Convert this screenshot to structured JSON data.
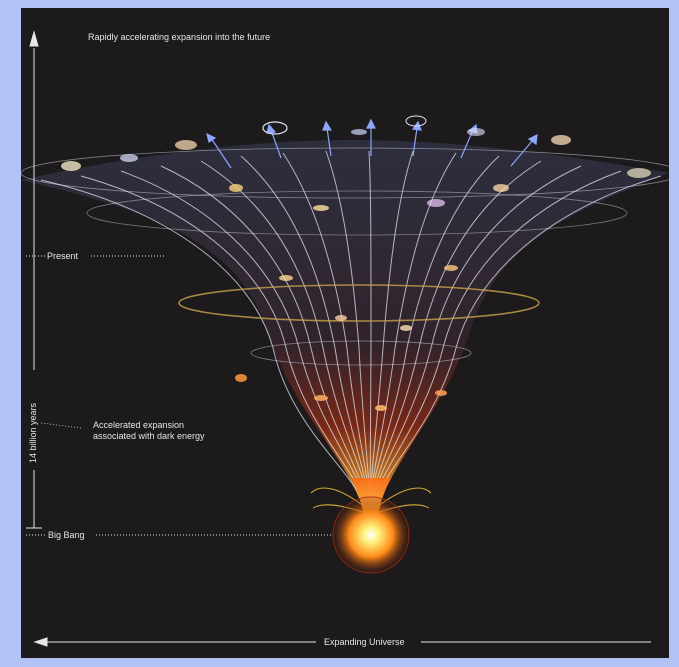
{
  "labels": {
    "future": "Rapidly accelerating expansion into the future",
    "present": "Present",
    "accelerated_line1": "Accelerated expansion",
    "accelerated_line2": "associated with dark energy",
    "big_bang": "Big Bang",
    "time_axis": "14 billion years",
    "space_axis": "Expanding Universe"
  },
  "colors": {
    "frame": "#b3c3f7",
    "background": "#1c1a1b",
    "grid_lines": "#dfe6f5",
    "glow": "#ffd23a",
    "ring": "#c9a24a",
    "arrows": "#8aa6ff"
  }
}
